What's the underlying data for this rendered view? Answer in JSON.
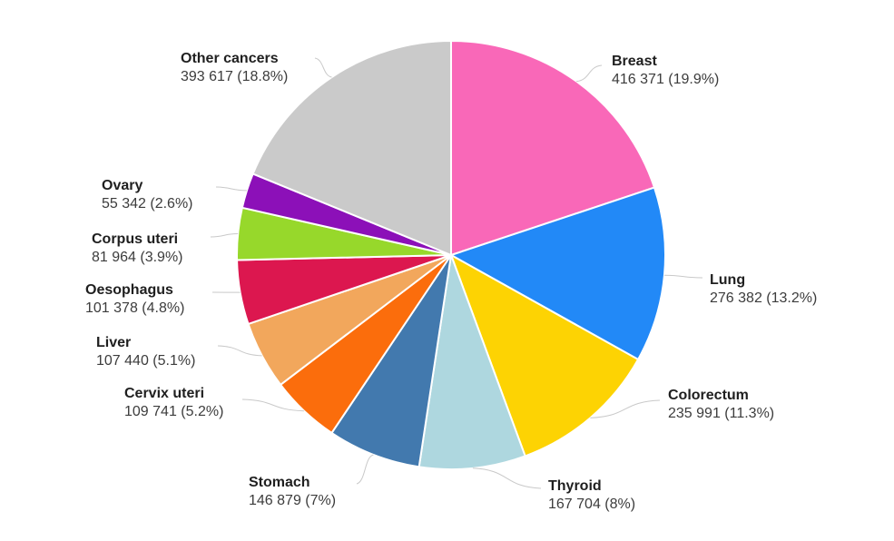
{
  "chart_data": {
    "type": "pie",
    "title": "",
    "legend_position": "none",
    "label_style": "outside-with-leader-lines",
    "start_angle_deg": 0,
    "direction": "clockwise",
    "background_color": "#ffffff",
    "slice_stroke_color": "#ffffff",
    "leader_line_color": "#c9c9c9",
    "label_name_color": "#1f1f1f",
    "label_value_color": "#3c3c3c",
    "slices": [
      {
        "label": "Breast",
        "value": 416371,
        "percent": 19.9,
        "display": "416 371 (19.9%)",
        "color": "#f968b8"
      },
      {
        "label": "Lung",
        "value": 276382,
        "percent": 13.2,
        "display": "276 382 (13.2%)",
        "color": "#2289f7"
      },
      {
        "label": "Colorectum",
        "value": 235991,
        "percent": 11.3,
        "display": "235 991 (11.3%)",
        "color": "#fdd303"
      },
      {
        "label": "Thyroid",
        "value": 167704,
        "percent": 8,
        "display": "167 704 (8%)",
        "color": "#aed7df"
      },
      {
        "label": "Stomach",
        "value": 146879,
        "percent": 7,
        "display": "146 879 (7%)",
        "color": "#4279ae"
      },
      {
        "label": "Cervix uteri",
        "value": 109741,
        "percent": 5.2,
        "display": "109 741 (5.2%)",
        "color": "#fb6d0c"
      },
      {
        "label": "Liver",
        "value": 107440,
        "percent": 5.1,
        "display": "107 440 (5.1%)",
        "color": "#f2a75c"
      },
      {
        "label": "Oesophagus",
        "value": 101378,
        "percent": 4.8,
        "display": "101 378 (4.8%)",
        "color": "#dc174f"
      },
      {
        "label": "Corpus uteri",
        "value": 81964,
        "percent": 3.9,
        "display": "81 964 (3.9%)",
        "color": "#97d82b"
      },
      {
        "label": "Ovary",
        "value": 55342,
        "percent": 2.6,
        "display": "55 342 (2.6%)",
        "color": "#8c10b8"
      },
      {
        "label": "Other cancers",
        "value": 393617,
        "percent": 18.8,
        "display": "393 617 (18.8%)",
        "color": "#cacaca"
      }
    ]
  }
}
